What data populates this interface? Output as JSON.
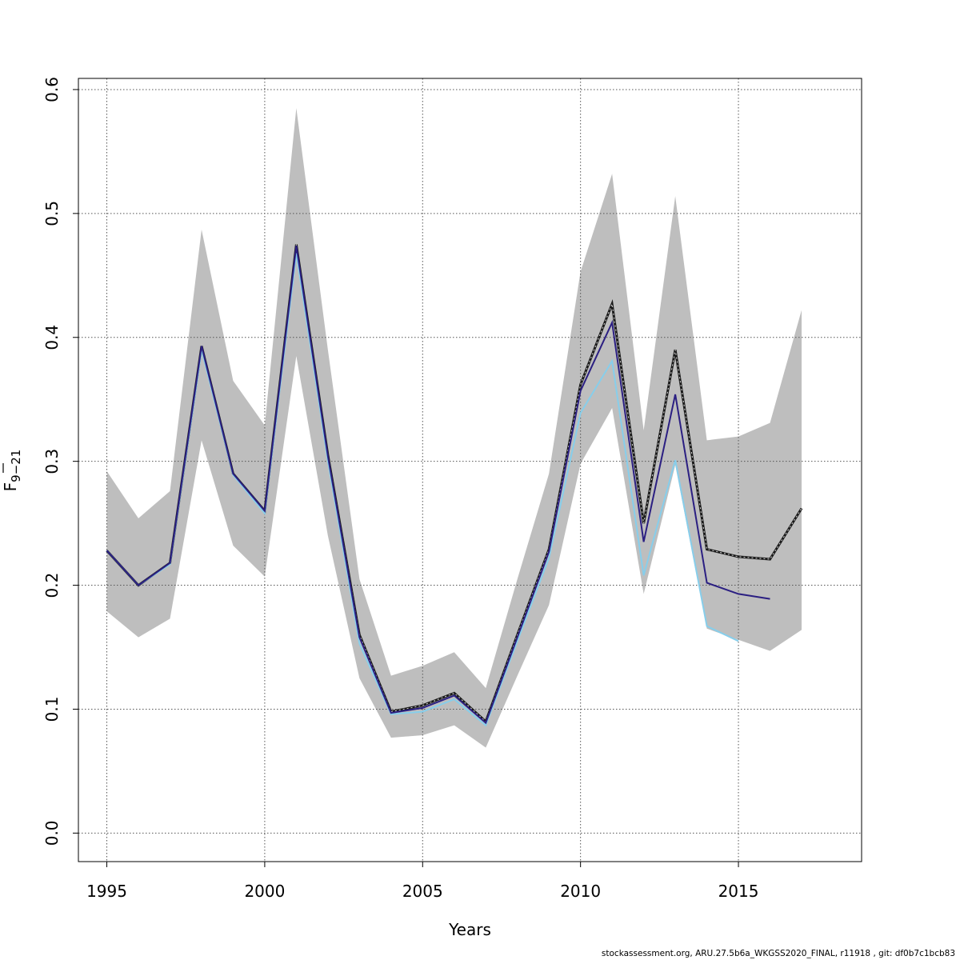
{
  "chart_data": {
    "type": "line",
    "title": "",
    "xlabel": "Years",
    "ylabel": {
      "base": "F",
      "subscript": "9−21"
    },
    "xlim": [
      1994.1,
      2018.9
    ],
    "ylim": [
      -0.023,
      0.609
    ],
    "x_ticks": [
      1995,
      2000,
      2005,
      2010,
      2015
    ],
    "x_tick_labels": [
      "1995",
      "2000",
      "2005",
      "2010",
      "2015"
    ],
    "y_ticks": [
      0.0,
      0.1,
      0.2,
      0.3,
      0.4,
      0.5,
      0.6
    ],
    "y_tick_labels": [
      "0.0",
      "0.1",
      "0.2",
      "0.3",
      "0.4",
      "0.5",
      "0.6"
    ],
    "grid": true,
    "confidence_band": {
      "color": "#bebebe",
      "x": [
        1995,
        1996,
        1997,
        1998,
        1999,
        2000,
        2001,
        2002,
        2003,
        2004,
        2005,
        2006,
        2007,
        2008,
        2009,
        2010,
        2011,
        2012,
        2013,
        2014,
        2015,
        2016,
        2017
      ],
      "upper": [
        0.292,
        0.254,
        0.276,
        0.487,
        0.365,
        0.329,
        0.585,
        0.39,
        0.205,
        0.127,
        0.135,
        0.146,
        0.117,
        0.205,
        0.29,
        0.453,
        0.532,
        0.325,
        0.514,
        0.317,
        0.32,
        0.331,
        0.422
      ],
      "lower": [
        0.179,
        0.158,
        0.173,
        0.317,
        0.232,
        0.207,
        0.385,
        0.24,
        0.125,
        0.077,
        0.079,
        0.087,
        0.069,
        0.127,
        0.184,
        0.298,
        0.343,
        0.193,
        0.297,
        0.165,
        0.156,
        0.147,
        0.164
      ]
    },
    "series": [
      {
        "color": "#1a1a1a",
        "style": "dashed",
        "x": [
          1995,
          1996,
          1997,
          1998,
          1999,
          2000,
          2001,
          2002,
          2003,
          2004,
          2005,
          2006,
          2007,
          2008,
          2009,
          2010,
          2011,
          2012,
          2013,
          2014,
          2015,
          2016,
          2017
        ],
        "values": [
          0.228,
          0.2,
          0.218,
          0.393,
          0.29,
          0.26,
          0.475,
          0.305,
          0.16,
          0.098,
          0.103,
          0.113,
          0.09,
          0.16,
          0.229,
          0.362,
          0.427,
          0.25,
          0.39,
          0.229,
          0.223,
          0.221,
          0.262
        ]
      },
      {
        "color": "#87ceeb",
        "style": "solid",
        "x": [
          1995,
          1996,
          1997,
          1998,
          1999,
          2000,
          2001,
          2002,
          2003,
          2004,
          2005,
          2006,
          2007,
          2008,
          2009,
          2010,
          2011,
          2012,
          2013,
          2014,
          2015
        ],
        "values": [
          0.228,
          0.2,
          0.217,
          0.39,
          0.289,
          0.258,
          0.468,
          0.3,
          0.153,
          0.096,
          0.098,
          0.108,
          0.087,
          0.155,
          0.222,
          0.339,
          0.381,
          0.208,
          0.301,
          0.167,
          0.155
        ]
      },
      {
        "color": "#2b1f82",
        "style": "solid",
        "x": [
          1995,
          1996,
          1997,
          1998,
          1999,
          2000,
          2001,
          2002,
          2003,
          2004,
          2005,
          2006,
          2007,
          2008,
          2009,
          2010,
          2011,
          2012,
          2013,
          2014,
          2015,
          2016
        ],
        "values": [
          0.228,
          0.2,
          0.218,
          0.393,
          0.29,
          0.26,
          0.474,
          0.304,
          0.158,
          0.097,
          0.101,
          0.111,
          0.089,
          0.158,
          0.227,
          0.357,
          0.412,
          0.235,
          0.354,
          0.202,
          0.193,
          0.189
        ]
      }
    ]
  },
  "footer": {
    "text": "stockassessment.org, ARU.27.5b6a_WKGSS2020_FINAL, r11918 , git: df0b7c1bcb83"
  }
}
